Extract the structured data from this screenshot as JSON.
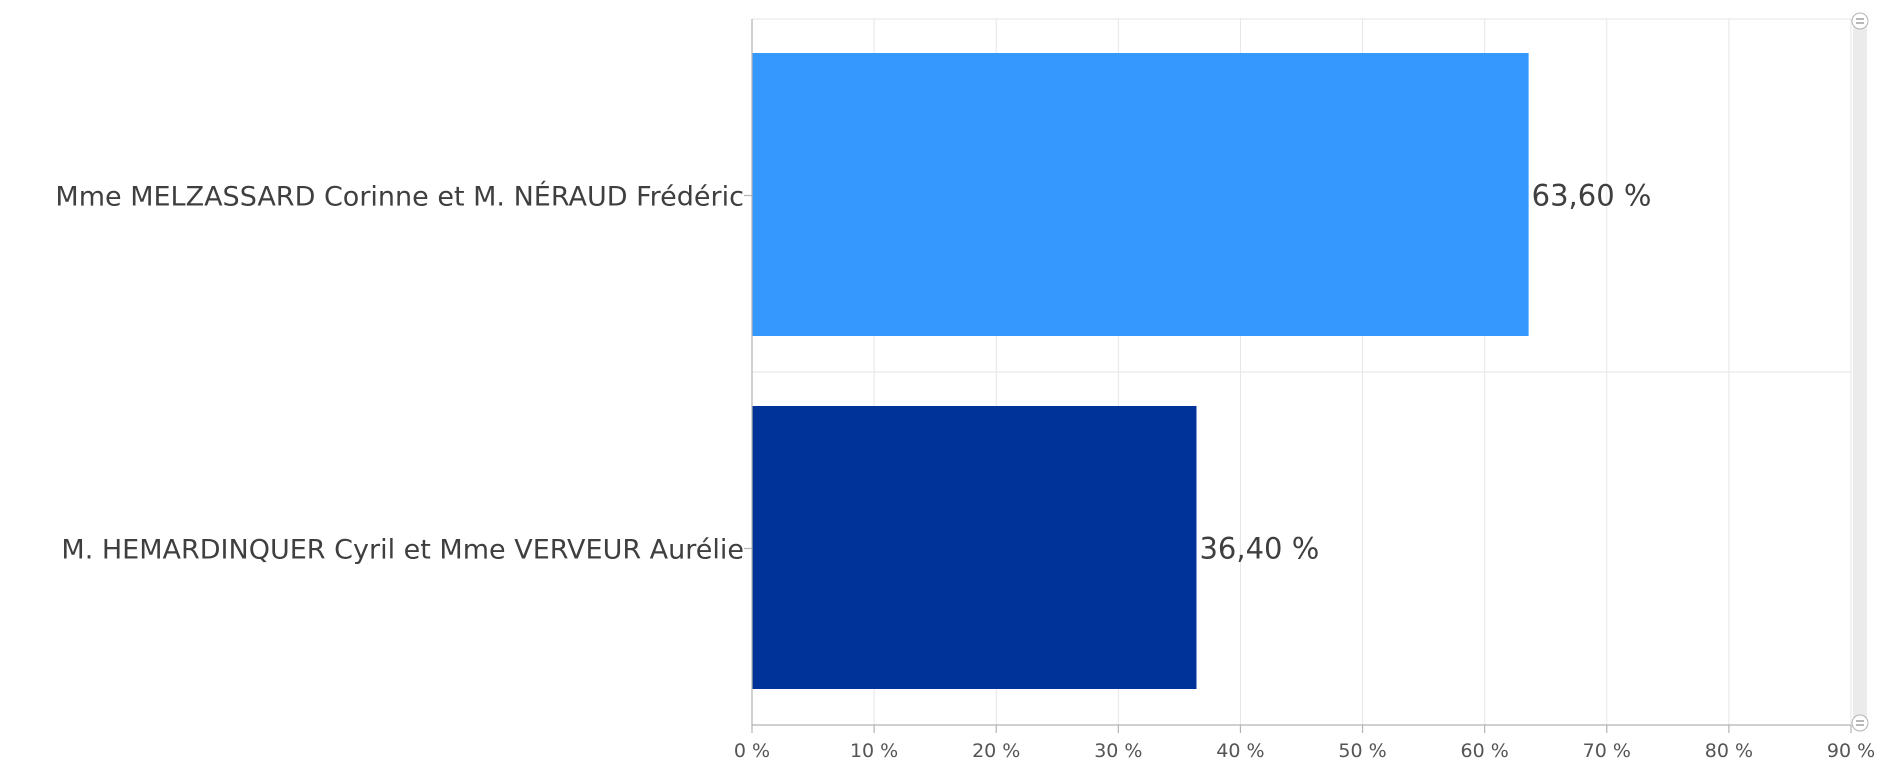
{
  "chart_data": {
    "type": "bar",
    "orientation": "horizontal",
    "categories": [
      "Mme MELZASSARD Corinne et M. NÉRAUD Frédéric",
      "M. HEMARDINQUER Cyril et Mme VERVEUR Aurélie"
    ],
    "values": [
      63.6,
      36.4
    ],
    "value_labels": [
      "63,60 %",
      "36,40 %"
    ],
    "bar_colors": [
      "#3598ff",
      "#003399"
    ],
    "xlim": [
      0,
      90
    ],
    "x_ticks": [
      0,
      10,
      20,
      30,
      40,
      50,
      60,
      70,
      80,
      90
    ],
    "x_tick_labels": [
      "0 %",
      "10 %",
      "20 %",
      "30 %",
      "40 %",
      "50 %",
      "60 %",
      "70 %",
      "80 %",
      "90 %"
    ],
    "grid": true,
    "legend": "none",
    "title": "",
    "xlabel": "",
    "ylabel": ""
  },
  "scrollbar": {
    "track_color": "#ebebeb",
    "handle_icon": "grip-lines-icon"
  }
}
